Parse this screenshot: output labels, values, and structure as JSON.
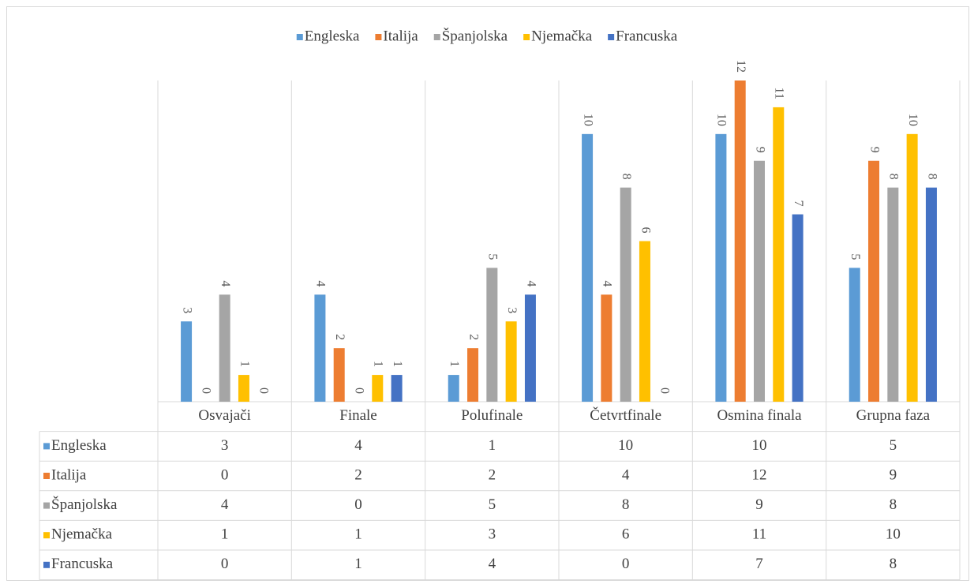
{
  "chart_data": {
    "type": "bar",
    "categories": [
      "Osvajači",
      "Finale",
      "Polufinale",
      "Četvrtfinale",
      "Osmina finala",
      "Grupna faza"
    ],
    "series": [
      {
        "name": "Engleska",
        "color": "#5b9bd5",
        "values": [
          3,
          4,
          1,
          10,
          10,
          5
        ]
      },
      {
        "name": "Italija",
        "color": "#ed7d31",
        "values": [
          0,
          2,
          2,
          4,
          12,
          9
        ]
      },
      {
        "name": "Španjolska",
        "color": "#a5a5a5",
        "values": [
          4,
          0,
          5,
          8,
          9,
          8
        ]
      },
      {
        "name": "Njemačka",
        "color": "#ffc000",
        "values": [
          1,
          1,
          3,
          6,
          11,
          10
        ]
      },
      {
        "name": "Francuska",
        "color": "#4472c4",
        "values": [
          0,
          1,
          4,
          0,
          7,
          8
        ]
      }
    ],
    "ylim": [
      0,
      12
    ],
    "legend": "top",
    "data_table": true
  }
}
